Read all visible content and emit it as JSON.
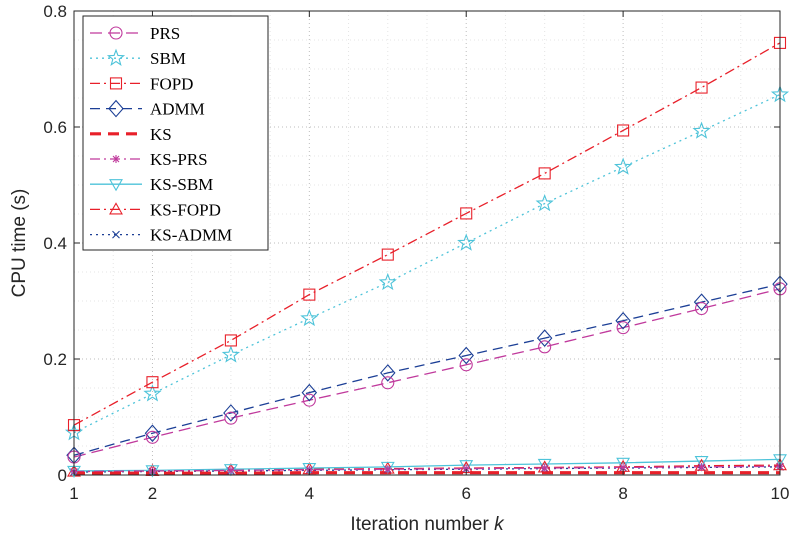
{
  "chart_data": {
    "type": "line",
    "title": "",
    "xlabel": "Iteration number",
    "xlabel_var": "k",
    "ylabel": "CPU time (s)",
    "xlim": [
      1,
      10
    ],
    "ylim": [
      0,
      0.8
    ],
    "xticks": [
      "1",
      "2",
      "4",
      "6",
      "8",
      "10"
    ],
    "yticks": [
      "0",
      "0.2",
      "0.4",
      "0.6",
      "0.8"
    ],
    "grid": true,
    "legend_position": "top-left",
    "x": [
      1,
      2,
      3,
      4,
      5,
      6,
      7,
      8,
      9,
      10
    ],
    "series": [
      {
        "name": "PRS",
        "color": "#c0399c",
        "marker": "circle",
        "dash": "long-dash",
        "values": [
          0.031,
          0.065,
          0.098,
          0.129,
          0.159,
          0.19,
          0.221,
          0.254,
          0.287,
          0.321
        ]
      },
      {
        "name": "SBM",
        "color": "#4dc3d9",
        "marker": "star",
        "dash": "dotted",
        "values": [
          0.073,
          0.14,
          0.207,
          0.27,
          0.332,
          0.4,
          0.468,
          0.531,
          0.593,
          0.656
        ]
      },
      {
        "name": "FOPD",
        "color": "#e8202a",
        "marker": "square",
        "dash": "dash-dot",
        "values": [
          0.086,
          0.16,
          0.232,
          0.311,
          0.38,
          0.451,
          0.52,
          0.594,
          0.668,
          0.745
        ]
      },
      {
        "name": "ADMM",
        "color": "#1c3f96",
        "marker": "diamond",
        "dash": "dashed",
        "values": [
          0.034,
          0.072,
          0.107,
          0.142,
          0.176,
          0.206,
          0.236,
          0.266,
          0.298,
          0.329
        ]
      },
      {
        "name": "KS",
        "color": "#e8202a",
        "marker": "none",
        "dash": "bold-dash",
        "values": [
          0.003,
          0.003,
          0.003,
          0.004,
          0.004,
          0.004,
          0.004,
          0.004,
          0.004,
          0.004
        ]
      },
      {
        "name": "KS-PRS",
        "color": "#c0399c",
        "marker": "asterisk",
        "dash": "dash-dot",
        "values": [
          0.006,
          0.007,
          0.008,
          0.009,
          0.01,
          0.011,
          0.012,
          0.013,
          0.014,
          0.015
        ]
      },
      {
        "name": "KS-SBM",
        "color": "#4dc3d9",
        "marker": "triangle-down",
        "dash": "solid",
        "values": [
          0.007,
          0.008,
          0.01,
          0.012,
          0.014,
          0.017,
          0.019,
          0.021,
          0.024,
          0.027
        ]
      },
      {
        "name": "KS-FOPD",
        "color": "#e8202a",
        "marker": "triangle-up",
        "dash": "dash-dot",
        "values": [
          0.006,
          0.007,
          0.008,
          0.01,
          0.011,
          0.012,
          0.013,
          0.014,
          0.016,
          0.017
        ]
      },
      {
        "name": "KS-ADMM",
        "color": "#1c3f96",
        "marker": "x",
        "dash": "dotted",
        "values": [
          0.005,
          0.006,
          0.007,
          0.008,
          0.009,
          0.01,
          0.011,
          0.012,
          0.013,
          0.014
        ]
      }
    ]
  }
}
